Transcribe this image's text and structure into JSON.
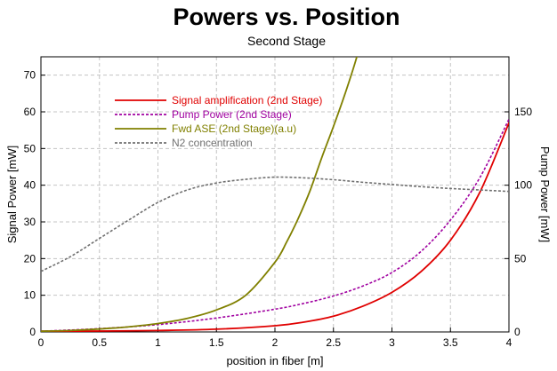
{
  "chart_data": {
    "type": "line",
    "title": "Powers vs. Position",
    "subtitle": "Second Stage",
    "xlabel": "position in fiber [m]",
    "ylabel_left": "Signal Power [mW]",
    "ylabel_right": "Pump Power [mW]",
    "xlim": [
      0,
      4
    ],
    "ylim_left": [
      0,
      75
    ],
    "ylim_right": [
      0,
      187.5
    ],
    "x_ticks": [
      "0",
      "0.5",
      "1",
      "1.5",
      "2",
      "2.5",
      "3",
      "3.5",
      "4"
    ],
    "y_ticks_left": [
      "0",
      "10",
      "20",
      "30",
      "40",
      "50",
      "60",
      "70"
    ],
    "y_ticks_right": [
      "0",
      "50",
      "100",
      "150"
    ],
    "grid": true,
    "legend_position": "top-left",
    "series": [
      {
        "name": "Signal amplification (2nd Stage)",
        "axis": "left",
        "color": "#e00000",
        "style": "solid",
        "x": [
          0,
          0.5,
          1,
          1.5,
          2,
          2.25,
          2.5,
          2.75,
          3,
          3.25,
          3.5,
          3.75,
          4
        ],
        "y": [
          0.2,
          0.25,
          0.4,
          0.75,
          1.7,
          2.7,
          4.3,
          7.0,
          10.8,
          16.5,
          25.0,
          38.0,
          57.0
        ]
      },
      {
        "name": "Pump Power (2nd Stage)",
        "axis": "left",
        "color": "#a000a0",
        "style": "dashed",
        "x": [
          0,
          0.5,
          1,
          1.5,
          2,
          2.25,
          2.5,
          2.75,
          3,
          3.25,
          3.5,
          3.75,
          4
        ],
        "y": [
          0.2,
          0.9,
          2.0,
          3.8,
          6.2,
          7.8,
          9.8,
          12.5,
          16.2,
          22.0,
          30.5,
          42.0,
          58.0
        ]
      },
      {
        "name": "Fwd ASE (2nd Stage)(a.u)",
        "axis": "left",
        "color": "#808000",
        "style": "solid",
        "x": [
          0,
          0.25,
          0.5,
          0.75,
          1,
          1.25,
          1.5,
          1.75,
          2,
          2.1,
          2.2,
          2.3,
          2.4,
          2.5,
          2.6,
          2.7,
          2.8
        ],
        "y": [
          0.2,
          0.4,
          0.8,
          1.4,
          2.3,
          3.7,
          6.0,
          10.0,
          19.0,
          24.5,
          31.0,
          38.5,
          47.5,
          56.0,
          65.0,
          75.0,
          87.0
        ]
      },
      {
        "name": "N2 concentration",
        "axis": "left",
        "color": "#707070",
        "style": "dashed",
        "x": [
          0,
          0.25,
          0.5,
          0.75,
          1,
          1.25,
          1.5,
          1.75,
          2,
          2.25,
          2.5,
          2.75,
          3,
          3.25,
          3.5,
          3.75,
          4
        ],
        "y": [
          16.5,
          20.5,
          25.5,
          30.5,
          35.3,
          38.7,
          40.6,
          41.6,
          42.2,
          42.0,
          41.5,
          40.8,
          40.2,
          39.6,
          39.1,
          38.7,
          38.3
        ]
      }
    ]
  }
}
